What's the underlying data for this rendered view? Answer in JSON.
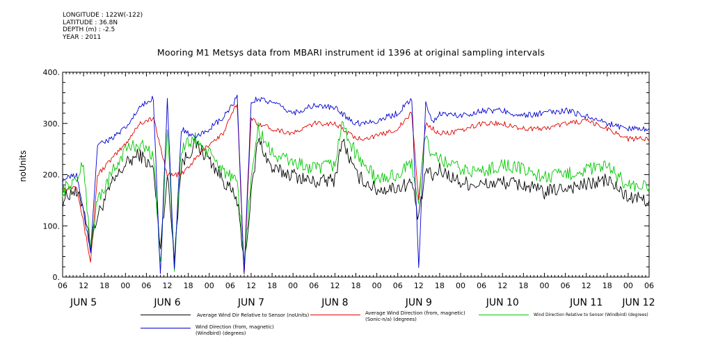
{
  "meta": {
    "longitude": "LONGITUDE : 122W(-122)",
    "latitude": "LATITUDE : 36.8N",
    "depth": "DEPTH (m) : -2.5",
    "year": "YEAR : 2011"
  },
  "chart_data": {
    "type": "line",
    "title": "Mooring M1 Metsys data from MBARI instrument id 1396 at original sampling intervals",
    "ylabel": "noUnits",
    "ylim": [
      0,
      400
    ],
    "yticks": [
      "0.",
      "100.",
      "200.",
      "300.",
      "400."
    ],
    "xlim": [
      "2011-06-05T06:00",
      "2011-06-12T06:00"
    ],
    "xtick_hours": [
      "06",
      "12",
      "18",
      "00",
      "06",
      "12",
      "18",
      "00",
      "06",
      "12",
      "18",
      "00",
      "06",
      "12",
      "18",
      "00",
      "06",
      "12",
      "18",
      "00",
      "06",
      "12",
      "18",
      "00",
      "06",
      "12",
      "18",
      "00",
      "06"
    ],
    "xdays": [
      "JUN 5",
      "JUN 6",
      "JUN 7",
      "JUN 8",
      "JUN 9",
      "JUN 10",
      "JUN 11",
      "JUN 12"
    ],
    "series": [
      {
        "name": "Average Wind Dir Relative to Sensor (noUnits)",
        "color": "#000000",
        "x": [
          "2011-06-05T06:00",
          "2011-06-05T09:00",
          "2011-06-05T12:00",
          "2011-06-05T14:00",
          "2011-06-05T16:00",
          "2011-06-05T20:00",
          "2011-06-06T00:00",
          "2011-06-06T04:00",
          "2011-06-06T08:00",
          "2011-06-06T10:00",
          "2011-06-06T12:00",
          "2011-06-06T14:00",
          "2011-06-06T16:00",
          "2011-06-06T20:00",
          "2011-06-07T00:00",
          "2011-06-07T04:00",
          "2011-06-07T08:00",
          "2011-06-07T10:00",
          "2011-06-07T12:00",
          "2011-06-07T14:00",
          "2011-06-07T18:00",
          "2011-06-08T00:00",
          "2011-06-08T06:00",
          "2011-06-08T12:00",
          "2011-06-08T14:00",
          "2011-06-08T18:00",
          "2011-06-09T00:00",
          "2011-06-09T06:00",
          "2011-06-09T10:00",
          "2011-06-09T12:00",
          "2011-06-09T14:00",
          "2011-06-09T16:00",
          "2011-06-09T18:00",
          "2011-06-10T00:00",
          "2011-06-10T06:00",
          "2011-06-10T12:00",
          "2011-06-10T18:00",
          "2011-06-11T00:00",
          "2011-06-11T06:00",
          "2011-06-11T12:00",
          "2011-06-11T18:00",
          "2011-06-12T00:00",
          "2011-06-12T06:00"
        ],
        "values": [
          150,
          170,
          140,
          60,
          120,
          180,
          220,
          240,
          210,
          60,
          200,
          40,
          220,
          260,
          230,
          190,
          150,
          20,
          160,
          270,
          210,
          200,
          185,
          190,
          270,
          200,
          170,
          175,
          185,
          110,
          210,
          195,
          210,
          185,
          180,
          185,
          180,
          165,
          175,
          180,
          190,
          155,
          150
        ]
      },
      {
        "name": "Average Wind Direction (from, magnetic) (Sonic-n/a) (degrees)",
        "color": "#e00000",
        "x": [
          "2011-06-05T06:00",
          "2011-06-05T10:00",
          "2011-06-05T14:00",
          "2011-06-05T16:00",
          "2011-06-05T20:00",
          "2011-06-06T00:00",
          "2011-06-06T04:00",
          "2011-06-06T08:00",
          "2011-06-06T12:00",
          "2011-06-06T16:00",
          "2011-06-06T20:00",
          "2011-06-07T00:00",
          "2011-06-07T04:00",
          "2011-06-07T08:00",
          "2011-06-07T10:00",
          "2011-06-07T12:00",
          "2011-06-07T14:00",
          "2011-06-07T18:00",
          "2011-06-08T00:00",
          "2011-06-08T06:00",
          "2011-06-08T12:00",
          "2011-06-08T18:00",
          "2011-06-09T00:00",
          "2011-06-09T06:00",
          "2011-06-09T10:00",
          "2011-06-09T12:00",
          "2011-06-09T14:00",
          "2011-06-09T18:00",
          "2011-06-10T00:00",
          "2011-06-10T06:00",
          "2011-06-10T12:00",
          "2011-06-10T18:00",
          "2011-06-11T00:00",
          "2011-06-11T06:00",
          "2011-06-11T12:00",
          "2011-06-11T18:00",
          "2011-06-12T00:00",
          "2011-06-12T06:00"
        ],
        "values": [
          170,
          180,
          30,
          200,
          230,
          260,
          300,
          310,
          200,
          200,
          230,
          260,
          280,
          340,
          10,
          310,
          300,
          290,
          280,
          300,
          300,
          270,
          275,
          290,
          320,
          150,
          300,
          280,
          285,
          300,
          300,
          290,
          290,
          300,
          305,
          290,
          270,
          270
        ]
      },
      {
        "name": "Wind Direction Relative to Sensor (Windbird) (degrees)",
        "color": "#00c800",
        "x": [
          "2011-06-05T06:00",
          "2011-06-05T10:00",
          "2011-06-05T12:00",
          "2011-06-05T14:00",
          "2011-06-05T16:00",
          "2011-06-05T20:00",
          "2011-06-06T00:00",
          "2011-06-06T04:00",
          "2011-06-06T08:00",
          "2011-06-06T10:00",
          "2011-06-06T12:00",
          "2011-06-06T14:00",
          "2011-06-06T16:00",
          "2011-06-06T20:00",
          "2011-06-07T00:00",
          "2011-06-07T04:00",
          "2011-06-07T08:00",
          "2011-06-07T10:00",
          "2011-06-07T12:00",
          "2011-06-07T14:00",
          "2011-06-07T18:00",
          "2011-06-08T00:00",
          "2011-06-08T06:00",
          "2011-06-08T12:00",
          "2011-06-08T14:00",
          "2011-06-08T18:00",
          "2011-06-09T00:00",
          "2011-06-09T06:00",
          "2011-06-09T10:00",
          "2011-06-09T12:00",
          "2011-06-09T14:00",
          "2011-06-09T16:00",
          "2011-06-09T18:00",
          "2011-06-10T00:00",
          "2011-06-10T06:00",
          "2011-06-10T12:00",
          "2011-06-10T18:00",
          "2011-06-11T00:00",
          "2011-06-11T06:00",
          "2011-06-11T12:00",
          "2011-06-11T18:00",
          "2011-06-12T00:00",
          "2011-06-12T06:00"
        ],
        "values": [
          170,
          190,
          220,
          60,
          150,
          200,
          250,
          260,
          240,
          20,
          300,
          20,
          250,
          270,
          240,
          210,
          180,
          30,
          190,
          290,
          240,
          225,
          210,
          220,
          300,
          240,
          190,
          200,
          220,
          150,
          280,
          230,
          230,
          210,
          205,
          220,
          210,
          195,
          200,
          210,
          215,
          180,
          175
        ]
      },
      {
        "name": "Wind Direction (from, magnetic) (Windbird) (degrees)",
        "color": "#0000d0",
        "x": [
          "2011-06-05T06:00",
          "2011-06-05T10:00",
          "2011-06-05T14:00",
          "2011-06-05T16:00",
          "2011-06-05T20:00",
          "2011-06-06T00:00",
          "2011-06-06T04:00",
          "2011-06-06T08:00",
          "2011-06-06T10:00",
          "2011-06-06T12:00",
          "2011-06-06T14:00",
          "2011-06-06T16:00",
          "2011-06-06T20:00",
          "2011-06-07T00:00",
          "2011-06-07T04:00",
          "2011-06-07T08:00",
          "2011-06-07T10:00",
          "2011-06-07T12:00",
          "2011-06-07T14:00",
          "2011-06-07T18:00",
          "2011-06-08T00:00",
          "2011-06-08T06:00",
          "2011-06-08T12:00",
          "2011-06-08T18:00",
          "2011-06-09T00:00",
          "2011-06-09T06:00",
          "2011-06-09T10:00",
          "2011-06-09T12:00",
          "2011-06-09T14:00",
          "2011-06-09T16:00",
          "2011-06-09T18:00",
          "2011-06-10T00:00",
          "2011-06-10T06:00",
          "2011-06-10T12:00",
          "2011-06-10T18:00",
          "2011-06-11T00:00",
          "2011-06-11T06:00",
          "2011-06-11T12:00",
          "2011-06-11T18:00",
          "2011-06-12T00:00",
          "2011-06-12T06:00"
        ],
        "values": [
          190,
          200,
          50,
          260,
          270,
          290,
          330,
          350,
          5,
          350,
          10,
          290,
          270,
          290,
          310,
          350,
          10,
          340,
          350,
          340,
          320,
          335,
          330,
          300,
          305,
          320,
          350,
          20,
          340,
          300,
          320,
          315,
          325,
          325,
          315,
          320,
          325,
          315,
          300,
          290,
          290
        ]
      }
    ]
  }
}
